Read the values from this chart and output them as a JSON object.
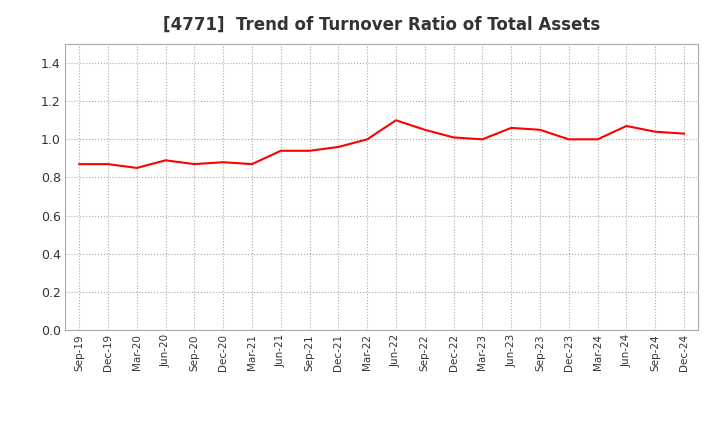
{
  "title": "[4771]  Trend of Turnover Ratio of Total Assets",
  "title_fontsize": 12,
  "title_color": "#333333",
  "line_color": "#ff0000",
  "line_width": 1.5,
  "background_color": "#ffffff",
  "grid_color": "#aaaaaa",
  "ylim": [
    0.0,
    1.5
  ],
  "yticks": [
    0.0,
    0.2,
    0.4,
    0.6,
    0.8,
    1.0,
    1.2,
    1.4
  ],
  "x_labels": [
    "Sep-19",
    "Dec-19",
    "Mar-20",
    "Jun-20",
    "Sep-20",
    "Dec-20",
    "Mar-21",
    "Jun-21",
    "Sep-21",
    "Dec-21",
    "Mar-22",
    "Jun-22",
    "Sep-22",
    "Dec-22",
    "Mar-23",
    "Jun-23",
    "Sep-23",
    "Dec-23",
    "Mar-24",
    "Jun-24",
    "Sep-24",
    "Dec-24"
  ],
  "values": [
    0.87,
    0.87,
    0.85,
    0.89,
    0.87,
    0.88,
    0.87,
    0.94,
    0.94,
    0.96,
    1.0,
    1.1,
    1.05,
    1.01,
    1.0,
    1.06,
    1.05,
    1.0,
    1.0,
    1.07,
    1.04,
    1.03
  ]
}
